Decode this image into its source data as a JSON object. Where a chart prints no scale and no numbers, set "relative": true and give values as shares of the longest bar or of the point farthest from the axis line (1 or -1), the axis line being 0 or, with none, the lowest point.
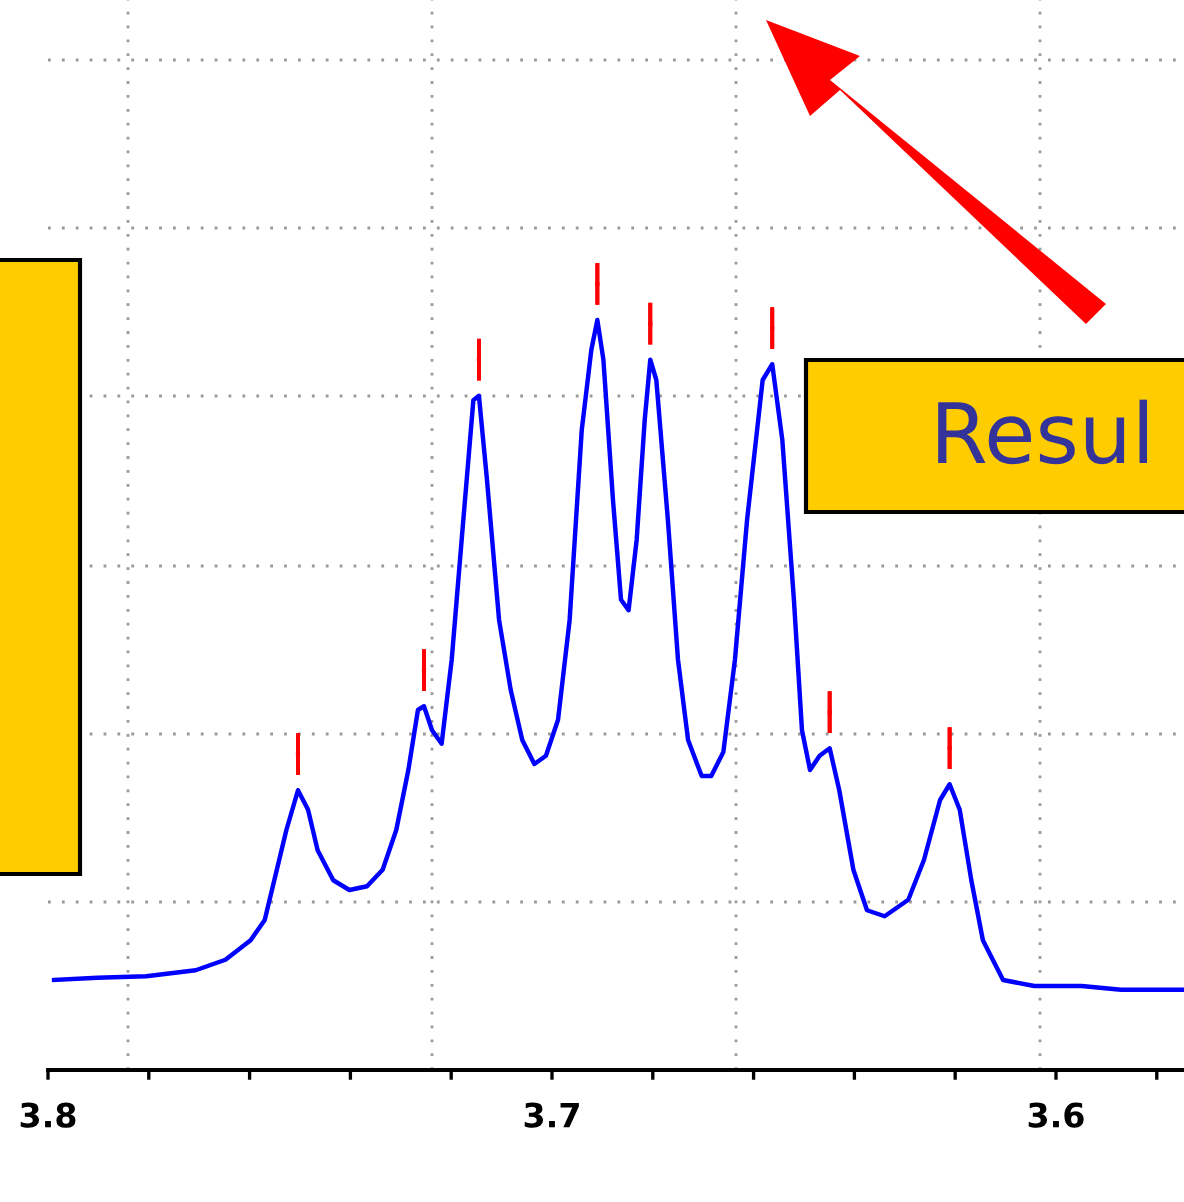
{
  "chart_data": {
    "type": "line",
    "relative": true,
    "grid": true,
    "xlim": [
      3.8,
      3.5746
    ],
    "xticks": [
      {
        "value": 3.8,
        "label": "3.8"
      },
      {
        "value": 3.78,
        "label": null
      },
      {
        "value": 3.76,
        "label": null
      },
      {
        "value": 3.74,
        "label": null
      },
      {
        "value": 3.72,
        "label": null
      },
      {
        "value": 3.7,
        "label": "3.7"
      },
      {
        "value": 3.68,
        "label": null
      },
      {
        "value": 3.66,
        "label": null
      },
      {
        "value": 3.64,
        "label": null
      },
      {
        "value": 3.62,
        "label": null
      },
      {
        "value": 3.6,
        "label": "3.6"
      },
      {
        "value": 3.58,
        "label": null
      }
    ],
    "tick_labels": "x",
    "annotations": [
      "Resul"
    ],
    "series": [
      {
        "color": "#0000ff",
        "x": [
          3.7988,
          3.7902,
          3.7805,
          3.7707,
          3.7648,
          3.7598,
          3.757,
          3.7551,
          3.7527,
          3.7504,
          3.7484,
          3.7465,
          3.7434,
          3.7402,
          3.7367,
          3.7336,
          3.7309,
          3.7285,
          3.7266,
          3.7254,
          3.7238,
          3.7219,
          3.7199,
          3.7176,
          3.7156,
          3.7145,
          3.7129,
          3.7105,
          3.7082,
          3.7059,
          3.7035,
          3.7012,
          3.6988,
          3.6965,
          3.6941,
          3.6922,
          3.691,
          3.6898,
          3.6879,
          3.6863,
          3.6848,
          3.6832,
          3.6816,
          3.6805,
          3.6793,
          3.677,
          3.675,
          3.673,
          3.6703,
          3.6684,
          3.666,
          3.6637,
          3.6613,
          3.6582,
          3.6563,
          3.6543,
          3.652,
          3.6504,
          3.6488,
          3.6469,
          3.6449,
          3.643,
          3.6402,
          3.6375,
          3.634,
          3.6293,
          3.6262,
          3.623,
          3.6211,
          3.6191,
          3.6168,
          3.6145,
          3.6105,
          3.6043,
          3.5949,
          3.5871,
          3.5746
        ],
        "values": [
          0.12,
          0.123,
          0.125,
          0.133,
          0.147,
          0.173,
          0.2,
          0.253,
          0.32,
          0.373,
          0.347,
          0.293,
          0.253,
          0.24,
          0.245,
          0.267,
          0.32,
          0.4,
          0.48,
          0.485,
          0.453,
          0.435,
          0.547,
          0.733,
          0.893,
          0.899,
          0.787,
          0.6,
          0.507,
          0.44,
          0.408,
          0.419,
          0.467,
          0.6,
          0.853,
          0.96,
          1,
          0.947,
          0.76,
          0.627,
          0.613,
          0.707,
          0.867,
          0.947,
          0.92,
          0.733,
          0.547,
          0.44,
          0.392,
          0.392,
          0.424,
          0.547,
          0.733,
          0.92,
          0.941,
          0.84,
          0.627,
          0.453,
          0.4,
          0.419,
          0.429,
          0.373,
          0.267,
          0.213,
          0.205,
          0.227,
          0.28,
          0.36,
          0.381,
          0.347,
          0.253,
          0.173,
          0.12,
          0.112,
          0.112,
          0.107,
          0.107
        ]
      }
    ]
  }
}
